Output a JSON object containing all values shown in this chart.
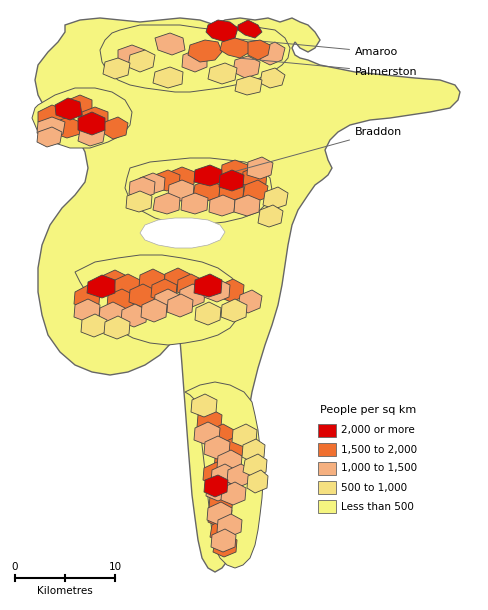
{
  "background_color": "#ffffff",
  "colors": {
    "very_high": "#dd0000",
    "high": "#f07030",
    "medium": "#f5b080",
    "low": "#f5e080",
    "very_low": "#f5f580"
  },
  "legend_title": "People per sq km",
  "legend_items": [
    {
      "label": "2,000 or more",
      "color": "#dd0000"
    },
    {
      "label": "1,500 to 2,000",
      "color": "#f07030"
    },
    {
      "label": "1,000 to 1,500",
      "color": "#f5b080"
    },
    {
      "label": "500 to 1,000",
      "color": "#f5e080"
    },
    {
      "label": "Less than 500",
      "color": "#f5f580"
    }
  ]
}
